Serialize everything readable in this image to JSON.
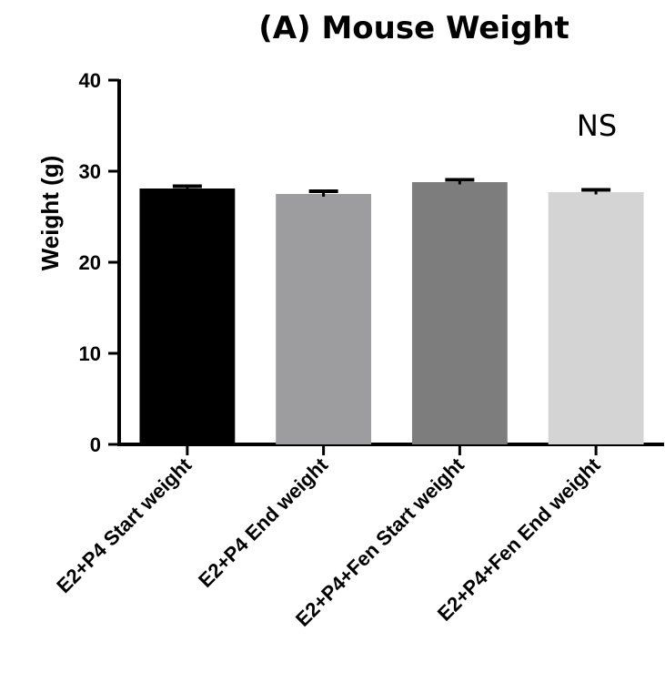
{
  "chart_data": {
    "type": "bar",
    "title": "(A) Mouse Weight",
    "xlabel": "",
    "ylabel": "Weight (g)",
    "ylim": [
      0,
      40
    ],
    "yticks": [
      0,
      10,
      20,
      30,
      40
    ],
    "grid": false,
    "categories": [
      "E2+P4 Start weight",
      "E2+P4 End weight",
      "E2+P4+Fen Start weight",
      "E2+P4+Fen End weight"
    ],
    "values": [
      28.1,
      27.5,
      28.8,
      27.7
    ],
    "errors": [
      0.25,
      0.3,
      0.25,
      0.25
    ],
    "colors": [
      "#000000",
      "#9d9d9f",
      "#7d7d7d",
      "#d4d4d4"
    ],
    "annotations": [
      {
        "text": "NS"
      }
    ]
  }
}
